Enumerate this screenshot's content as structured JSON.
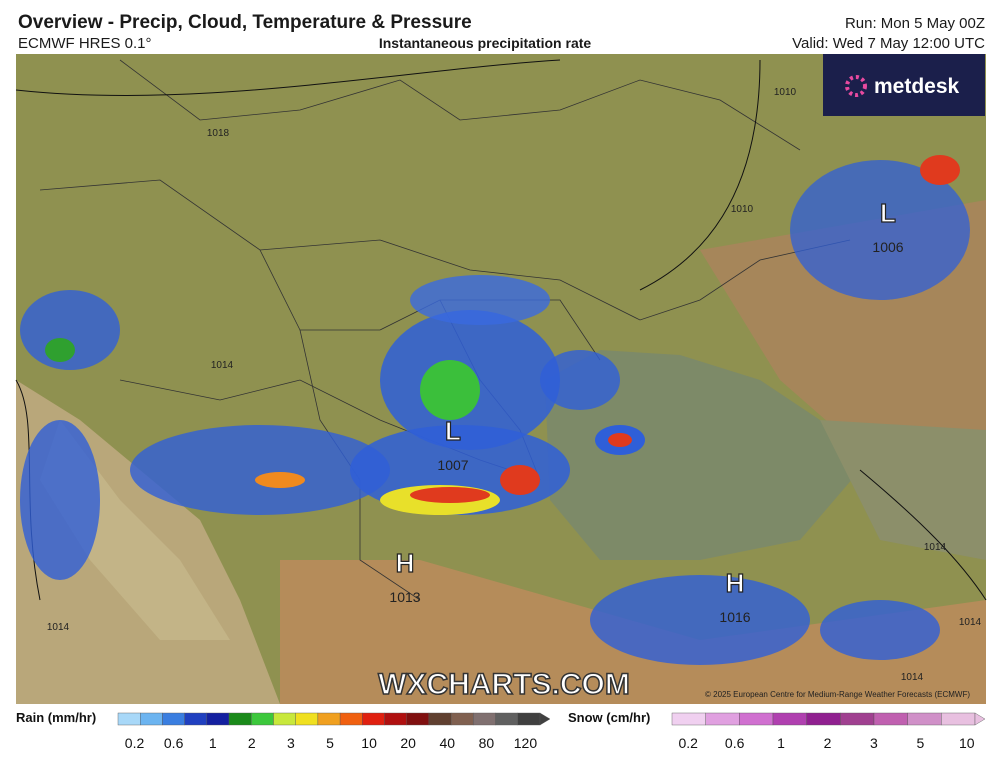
{
  "header": {
    "title": "Overview - Precip, Cloud, Temperature & Pressure",
    "model": "ECMWF HRES 0.1°",
    "subtitle": "Instantaneous precipitation rate",
    "run": "Run: Mon 5 May 00Z",
    "valid": "Valid: Wed 7 May 12:00 UTC"
  },
  "logo": "metdesk",
  "watermark": "WXCHARTS.COM",
  "copyright": "© 2025 European Centre for Medium-Range Weather Forecasts (ECMWF)",
  "pressure_centers": [
    {
      "type": "L",
      "value": 1006
    },
    {
      "type": "L",
      "value": 1007
    },
    {
      "type": "H",
      "value": 1013
    },
    {
      "type": "H",
      "value": 1016
    }
  ],
  "isobar_labels": [
    1018,
    1010,
    1010,
    1014,
    1014,
    1014,
    1014,
    1014
  ],
  "legend": {
    "rain": {
      "label": "Rain (mm/hr)",
      "ticks": [
        0.2,
        0.6,
        1,
        2,
        3,
        5,
        10,
        20,
        40,
        80,
        120
      ]
    },
    "snow": {
      "label": "Snow (cm/hr)",
      "ticks": [
        0.2,
        0.6,
        1,
        2,
        3,
        5,
        10
      ]
    }
  }
}
